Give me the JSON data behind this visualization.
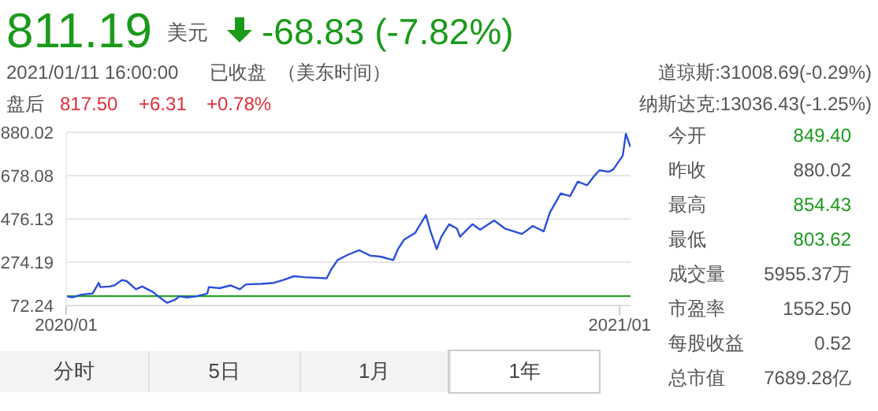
{
  "chart_data": {
    "type": "line",
    "x": [
      "2020-01-13",
      "2020-01-17",
      "2020-01-23",
      "2020-01-30",
      "2020-02-03",
      "2020-02-04",
      "2020-02-10",
      "2020-02-13",
      "2020-02-18",
      "2020-02-21",
      "2020-02-27",
      "2020-03-02",
      "2020-03-09",
      "2020-03-11",
      "2020-03-18",
      "2020-03-23",
      "2020-03-26",
      "2020-03-31",
      "2020-04-06",
      "2020-04-13",
      "2020-04-14",
      "2020-04-21",
      "2020-04-28",
      "2020-05-04",
      "2020-05-08",
      "2020-05-18",
      "2020-05-26",
      "2020-06-01",
      "2020-06-08",
      "2020-06-15",
      "2020-06-29",
      "2020-07-02",
      "2020-07-06",
      "2020-07-13",
      "2020-07-20",
      "2020-07-27",
      "2020-08-03",
      "2020-08-11",
      "2020-08-14",
      "2020-08-18",
      "2020-08-25",
      "2020-09-01",
      "2020-09-04",
      "2020-09-08",
      "2020-09-11",
      "2020-09-16",
      "2020-09-21",
      "2020-09-23",
      "2020-10-01",
      "2020-10-06",
      "2020-10-15",
      "2020-10-22",
      "2020-11-02",
      "2020-11-09",
      "2020-11-16",
      "2020-11-20",
      "2020-11-27",
      "2020-12-03",
      "2020-12-08",
      "2020-12-14",
      "2020-12-18",
      "2020-12-22",
      "2020-12-28",
      "2020-12-31",
      "2021-01-06",
      "2021-01-08",
      "2021-01-11"
    ],
    "series": [
      {
        "color": "#2b50d8",
        "values": [
          116,
          110,
          123,
          128,
          178,
          158,
          161,
          166,
          191,
          186,
          148,
          161,
          135,
          123,
          85,
          98,
          115,
          110,
          115,
          128,
          158,
          153,
          166,
          148,
          171,
          173,
          178,
          191,
          209,
          204,
          199,
          241,
          284,
          310,
          330,
          305,
          300,
          284,
          335,
          380,
          410,
          494,
          418,
          335,
          393,
          451,
          431,
          393,
          451,
          426,
          469,
          431,
          406,
          443,
          418,
          506,
          595,
          582,
          650,
          633,
          671,
          703,
          696,
          708,
          771,
          873,
          811
        ]
      }
    ],
    "xlim": [
      "2020-01-13",
      "2021-01-11"
    ],
    "xticks": [
      {
        "value": "2020-01-13",
        "label": "2020/01"
      },
      {
        "value": "2021-01-04",
        "label": "2021/01"
      }
    ],
    "ylim": [
      72.24,
      880.02
    ],
    "yticks": [
      72.24,
      274.19,
      476.13,
      678.08,
      880.02
    ],
    "grid": "y",
    "legend": false,
    "marker": "none",
    "line_style": "solid",
    "ref_lines": [
      {
        "axis": "y",
        "value": 116,
        "color": "#2ca02c"
      }
    ],
    "annotations": [
      "811.19",
      "美元",
      "-68.83 (-7.82%)",
      "2021/01/11 16:00:00",
      "已收盘",
      "（美东时间）",
      "盘后",
      "817.50",
      "+6.31",
      "+0.78%",
      "道琼斯:31008.69(-0.29%)",
      "纳斯达克:13036.43(-1.25%)",
      "今开",
      "849.40",
      "昨收",
      "880.02",
      "最高",
      "854.43",
      "最低",
      "803.62",
      "成交量",
      "5955.37万",
      "市盈率",
      "1552.50",
      "每股收益",
      "0.52",
      "总市值",
      "7689.28亿",
      "分时",
      "5日",
      "1月",
      "1年"
    ]
  }
}
